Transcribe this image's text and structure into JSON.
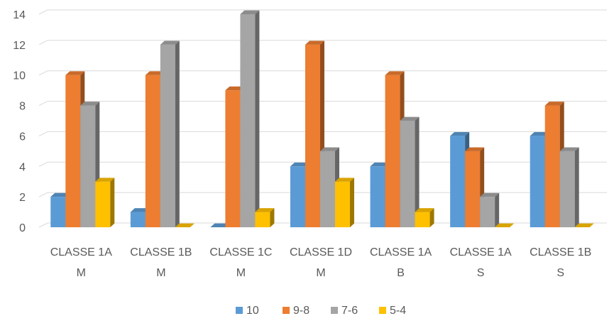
{
  "chart_data": {
    "type": "bar",
    "style": "3d-clustered-column",
    "title": "",
    "xlabel": "",
    "ylabel": "",
    "ylim": [
      0,
      14
    ],
    "yticks": [
      0,
      2,
      4,
      6,
      8,
      10,
      12,
      14
    ],
    "grid": true,
    "legend_position": "bottom",
    "categories": [
      [
        "CLASSE 1A",
        "M"
      ],
      [
        "CLASSE 1B",
        "M"
      ],
      [
        "CLASSE 1C",
        "M"
      ],
      [
        "CLASSE 1D",
        "M"
      ],
      [
        "CLASSE 1A",
        "B"
      ],
      [
        "CLASSE 1A",
        "S"
      ],
      [
        "CLASSE 1B",
        "S"
      ]
    ],
    "series": [
      {
        "name": "10",
        "color": "#5B9BD5",
        "values": [
          2,
          1,
          0,
          4,
          4,
          6,
          6
        ]
      },
      {
        "name": "9-8",
        "color": "#ED7D31",
        "values": [
          10,
          10,
          9,
          12,
          10,
          5,
          8
        ]
      },
      {
        "name": "7-6",
        "color": "#A5A5A5",
        "values": [
          8,
          12,
          14,
          5,
          7,
          2,
          5
        ]
      },
      {
        "name": "5-4",
        "color": "#FFC000",
        "values": [
          3,
          0,
          1,
          3,
          1,
          0,
          0
        ]
      }
    ]
  }
}
